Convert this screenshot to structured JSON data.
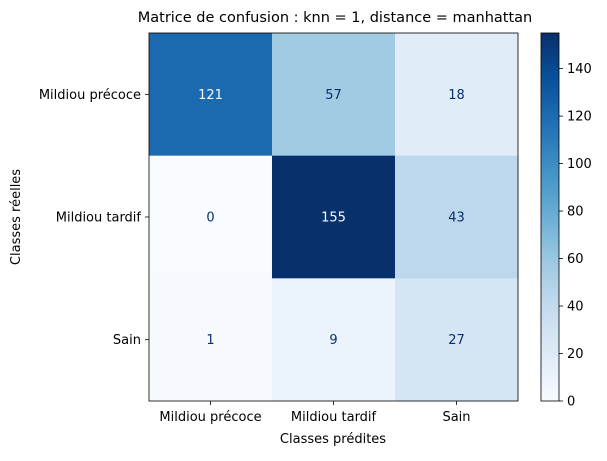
{
  "chart_data": {
    "type": "heatmap",
    "title": "Matrice de confusion : knn = 1, distance = manhattan",
    "xlabel": "Classes prédites",
    "ylabel": "Classes réelles",
    "x_categories": [
      "Mildiou précoce",
      "Mildiou tardif",
      "Sain"
    ],
    "y_categories": [
      "Mildiou précoce",
      "Mildiou tardif",
      "Sain"
    ],
    "values": [
      [
        121,
        57,
        18
      ],
      [
        0,
        155,
        43
      ],
      [
        1,
        9,
        27
      ]
    ],
    "color_range": [
      0,
      155
    ],
    "colormap": "Blues",
    "colorbar_ticks": [
      0,
      20,
      40,
      60,
      80,
      100,
      120,
      140
    ],
    "colorbar_tick_labels": [
      "0",
      "20",
      "40",
      "60",
      "80",
      "100",
      "120",
      "140"
    ],
    "grid": false
  }
}
